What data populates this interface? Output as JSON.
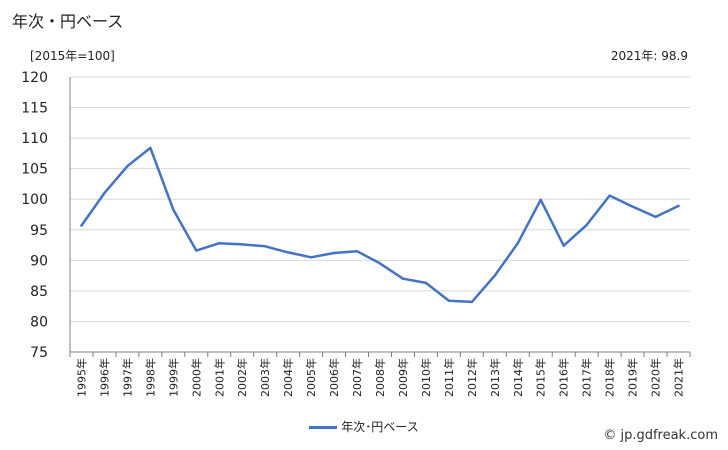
{
  "title": "年次・円ベース",
  "unit_label": "[2015年=100]",
  "latest_label": "2021年: 98.9",
  "legend_label": "年次･円ベース",
  "credit": "© jp.gdfreak.com",
  "colors": {
    "line": "#4472c4",
    "grid": "#d9d9d9",
    "axis": "#808080"
  },
  "chart_data": {
    "type": "line",
    "x": [
      "1995年",
      "1996年",
      "1997年",
      "1998年",
      "1999年",
      "2000年",
      "2001年",
      "2002年",
      "2003年",
      "2004年",
      "2005年",
      "2006年",
      "2007年",
      "2008年",
      "2009年",
      "2010年",
      "2011年",
      "2012年",
      "2013年",
      "2014年",
      "2015年",
      "2016年",
      "2017年",
      "2018年",
      "2019年",
      "2020年",
      "2021年"
    ],
    "series": [
      {
        "name": "年次･円ベース",
        "values": [
          95.7,
          101.0,
          105.4,
          108.4,
          98.3,
          91.6,
          92.8,
          92.6,
          92.3,
          91.3,
          90.5,
          91.2,
          91.5,
          89.5,
          87.0,
          86.3,
          83.4,
          83.2,
          87.5,
          92.8,
          99.9,
          92.4,
          95.8,
          100.6,
          98.8,
          97.1,
          98.9
        ]
      }
    ],
    "yticks": [
      75,
      80,
      85,
      90,
      95,
      100,
      105,
      110,
      115,
      120
    ],
    "ylim": [
      75,
      120
    ],
    "grid": true,
    "legend_position": "bottom"
  }
}
